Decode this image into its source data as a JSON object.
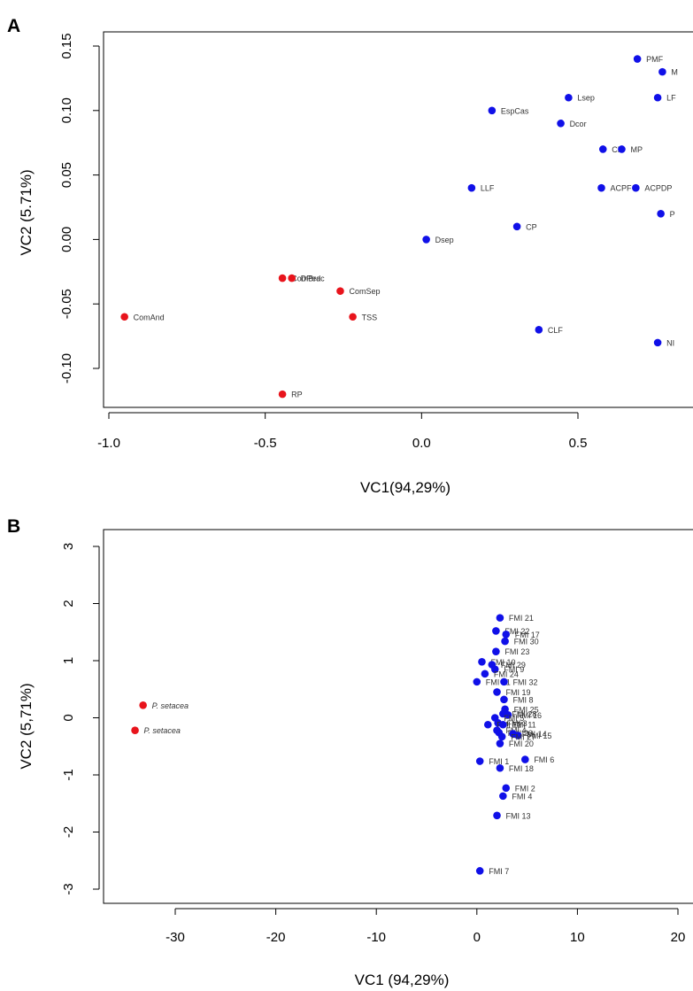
{
  "chart_data": [
    {
      "panel": "A",
      "type": "scatter",
      "xlabel": "VC1(94,29%)",
      "ylabel": "VC2 (5.71%)",
      "xlim": [
        -1.0,
        0.85
      ],
      "ylim": [
        -0.13,
        0.15
      ],
      "xticks": [
        -1.0,
        -0.5,
        0.0,
        0.5
      ],
      "xtick_labels": [
        "-1.0",
        "-0.5",
        "0.0",
        "0.5"
      ],
      "yticks": [
        -0.1,
        -0.05,
        0.0,
        0.05,
        0.1,
        0.15
      ],
      "ytick_labels": [
        "-0.10",
        "-0.05",
        "0.00",
        "0.05",
        "0.10",
        "0.15"
      ],
      "grid": false,
      "colors": {
        "red": "#e8141c",
        "blue": "#1010e8"
      },
      "series": [
        {
          "color": "red",
          "points": [
            {
              "label": "ComAnd",
              "x": -0.95,
              "y": -0.06
            },
            {
              "label": "ComBrac",
              "x": -0.445,
              "y": -0.03
            },
            {
              "label": "DPed",
              "x": -0.415,
              "y": -0.03
            },
            {
              "label": "ComSep",
              "x": -0.26,
              "y": -0.04
            },
            {
              "label": "TSS",
              "x": -0.22,
              "y": -0.06
            },
            {
              "label": "RP",
              "x": -0.445,
              "y": -0.12
            }
          ]
        },
        {
          "color": "blue",
          "points": [
            {
              "label": "PMF",
              "x": 0.69,
              "y": 0.14
            },
            {
              "label": "M",
              "x": 0.77,
              "y": 0.13
            },
            {
              "label": "Lsep",
              "x": 0.47,
              "y": 0.11
            },
            {
              "label": "LF",
              "x": 0.755,
              "y": 0.11
            },
            {
              "label": "EspCas",
              "x": 0.225,
              "y": 0.1
            },
            {
              "label": "Dcor",
              "x": 0.445,
              "y": 0.09
            },
            {
              "label": "CF",
              "x": 0.58,
              "y": 0.07
            },
            {
              "label": "MP",
              "x": 0.64,
              "y": 0.07
            },
            {
              "label": "LLF",
              "x": 0.16,
              "y": 0.04
            },
            {
              "label": "ACPF",
              "x": 0.575,
              "y": 0.04
            },
            {
              "label": "ACPDP",
              "x": 0.685,
              "y": 0.04
            },
            {
              "label": "P",
              "x": 0.765,
              "y": 0.02
            },
            {
              "label": "CP",
              "x": 0.305,
              "y": 0.01
            },
            {
              "label": "Dsep",
              "x": 0.015,
              "y": 0.0
            },
            {
              "label": "CLF",
              "x": 0.375,
              "y": -0.07
            },
            {
              "label": "NI",
              "x": 0.755,
              "y": -0.08
            }
          ]
        }
      ]
    },
    {
      "panel": "B",
      "type": "scatter",
      "xlabel": "VC1 (94,29%)",
      "ylabel": "VC2 (5,71%)",
      "xlim": [
        -37,
        22
      ],
      "ylim": [
        -3.2,
        3.2
      ],
      "xticks": [
        -30,
        -20,
        -10,
        0,
        10,
        20
      ],
      "xtick_labels": [
        "-30",
        "-20",
        "-10",
        "0",
        "10",
        "20"
      ],
      "yticks": [
        -3,
        -2,
        -1,
        0,
        1,
        2,
        3
      ],
      "ytick_labels": [
        "-3",
        "-2",
        "-1",
        "0",
        "1",
        "2",
        "3"
      ],
      "grid": false,
      "colors": {
        "red": "#e8141c",
        "blue": "#1010e8"
      },
      "series": [
        {
          "color": "red",
          "points": [
            {
              "label": "P. setacea",
              "x": -33.2,
              "y": 0.22
            },
            {
              "label": "P. setacea",
              "x": -34.0,
              "y": -0.22
            }
          ]
        },
        {
          "color": "blue",
          "points": [
            {
              "label": "FMI 21",
              "x": 2.3,
              "y": 1.75
            },
            {
              "label": "FMI 22",
              "x": 1.9,
              "y": 1.52
            },
            {
              "label": "FMI 17",
              "x": 2.9,
              "y": 1.46
            },
            {
              "label": "FMI 30",
              "x": 2.8,
              "y": 1.34
            },
            {
              "label": "FMI 23",
              "x": 1.9,
              "y": 1.16
            },
            {
              "label": "FMI 10",
              "x": 0.5,
              "y": 0.98
            },
            {
              "label": "FMI 29",
              "x": 1.5,
              "y": 0.93
            },
            {
              "label": "FMI 9",
              "x": 1.8,
              "y": 0.85
            },
            {
              "label": "FMI 24",
              "x": 0.8,
              "y": 0.77
            },
            {
              "label": "FMI 31",
              "x": 0.0,
              "y": 0.63
            },
            {
              "label": "FMI 32",
              "x": 2.7,
              "y": 0.63
            },
            {
              "label": "FMI 19",
              "x": 2.0,
              "y": 0.45
            },
            {
              "label": "FMI 8",
              "x": 2.7,
              "y": 0.32
            },
            {
              "label": "FMI 25",
              "x": 2.8,
              "y": 0.15
            },
            {
              "label": "FMI 28",
              "x": 2.6,
              "y": 0.07
            },
            {
              "label": "FMI 16",
              "x": 3.1,
              "y": 0.05
            },
            {
              "label": "FMI 5",
              "x": 1.8,
              "y": 0.0
            },
            {
              "label": "FMI 3",
              "x": 2.1,
              "y": -0.09
            },
            {
              "label": "FMI 12",
              "x": 1.1,
              "y": -0.12
            },
            {
              "label": "FMI 11",
              "x": 2.6,
              "y": -0.12
            },
            {
              "label": "FMI 4",
              "x": 2.0,
              "y": -0.22
            },
            {
              "label": "FMI 26",
              "x": 2.2,
              "y": -0.26
            },
            {
              "label": "FMI 14",
              "x": 3.6,
              "y": -0.28
            },
            {
              "label": "FMI 15",
              "x": 4.1,
              "y": -0.31
            },
            {
              "label": "FMI 27",
              "x": 2.5,
              "y": -0.33
            },
            {
              "label": "FMI 20",
              "x": 2.3,
              "y": -0.45
            },
            {
              "label": "FMI 1",
              "x": 0.3,
              "y": -0.76
            },
            {
              "label": "FMI 6",
              "x": 4.8,
              "y": -0.73
            },
            {
              "label": "FMI 18",
              "x": 2.3,
              "y": -0.88
            },
            {
              "label": "FMI 2",
              "x": 2.9,
              "y": -1.23
            },
            {
              "label": "FMI 4",
              "x": 2.6,
              "y": -1.37
            },
            {
              "label": "FMI 13",
              "x": 2.0,
              "y": -1.71
            },
            {
              "label": "FMI 7",
              "x": 0.3,
              "y": -2.68
            }
          ]
        }
      ]
    }
  ]
}
